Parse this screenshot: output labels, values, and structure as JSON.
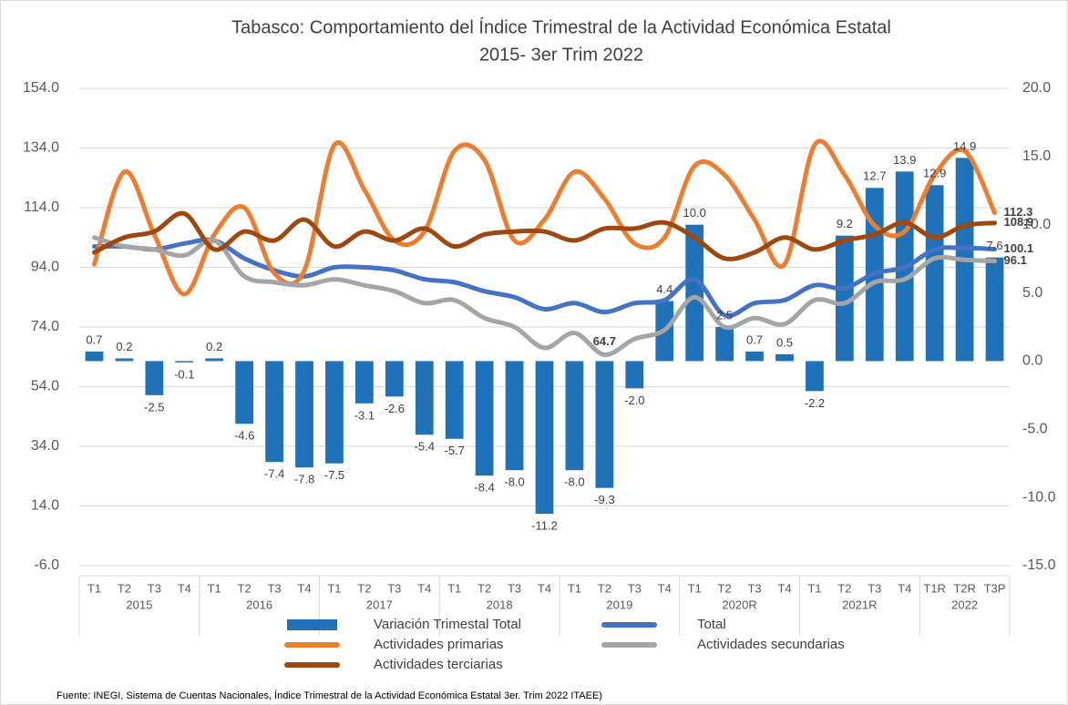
{
  "chart_data": {
    "type": "bar-line",
    "title": [
      "Tabasco: Comportamiento del Índice Trimestral de la Actividad Económica Estatal",
      "2015- 3er Trim 2022"
    ],
    "source": "Fuente: INEGI, Sistema de Cuentas Nacionales, Índice Trimestral de la Actividad Económica Estatal 3er. Trim 2022 ITAEE)",
    "groups": [
      {
        "name": "2015",
        "categories": [
          "T1",
          "T2",
          "T3",
          "T4"
        ]
      },
      {
        "name": "2016",
        "categories": [
          "T1",
          "T2",
          "T3",
          "T4"
        ]
      },
      {
        "name": "2017",
        "categories": [
          "T1",
          "T2",
          "T3",
          "T4"
        ]
      },
      {
        "name": "2018",
        "categories": [
          "T1",
          "T2",
          "T3",
          "T4"
        ]
      },
      {
        "name": "2019",
        "categories": [
          "T1",
          "T2",
          "T3",
          "T4"
        ]
      },
      {
        "name": "2020R",
        "categories": [
          "T1",
          "T2",
          "T3",
          "T4"
        ]
      },
      {
        "name": "2021R",
        "categories": [
          "T1",
          "T2",
          "T3",
          "T4"
        ]
      },
      {
        "name": "2022",
        "categories": [
          "T1R",
          "T2R",
          "T3P"
        ]
      }
    ],
    "ylim": [
      -6,
      154
    ],
    "yticks": [
      {
        "value": -6,
        "label": "-6.0"
      },
      {
        "value": 14,
        "label": "14.0"
      },
      {
        "value": 34,
        "label": "34.0"
      },
      {
        "value": 54,
        "label": "54.0"
      },
      {
        "value": 74,
        "label": "74.0"
      },
      {
        "value": 94,
        "label": "94.0"
      },
      {
        "value": 114,
        "label": "114.0"
      },
      {
        "value": 134,
        "label": "134.0"
      },
      {
        "value": 154,
        "label": "154.0"
      }
    ],
    "y2lim": [
      -15,
      20
    ],
    "y2ticks": [
      {
        "value": -15,
        "label": "-15.0"
      },
      {
        "value": -10,
        "label": "-10.0"
      },
      {
        "value": -5,
        "label": "-5.0"
      },
      {
        "value": 0,
        "label": "0.0"
      },
      {
        "value": 5,
        "label": "5.0"
      },
      {
        "value": 10,
        "label": "10.0"
      },
      {
        "value": 15,
        "label": "15.0"
      },
      {
        "value": 20,
        "label": "20.0"
      }
    ],
    "grid": true,
    "legend": "bottom",
    "series": [
      {
        "name": "Variación Trimestal Total",
        "type": "bar",
        "axis": "y2",
        "color": "#1f72b8",
        "values": [
          0.7,
          0.2,
          -2.5,
          -0.1,
          0.2,
          -4.6,
          -7.4,
          -7.8,
          -7.5,
          -3.1,
          -2.6,
          -5.4,
          -5.7,
          -8.4,
          -8.0,
          -11.2,
          -8.0,
          -9.3,
          -2.0,
          4.4,
          10.0,
          2.5,
          0.7,
          0.5,
          -2.2,
          9.2,
          12.7,
          13.9,
          12.9,
          14.9,
          7.6
        ],
        "value_labels": [
          "0.7",
          "0.2",
          "-2.5",
          "-0.1",
          "0.2",
          "-4.6",
          "-7.4",
          "-7.8",
          "-7.5",
          "-3.1",
          "-2.6",
          "-5.4",
          "-5.7",
          "-8.4",
          "-8.0",
          "-11.2",
          "-8.0",
          "-9.3",
          "-2.0",
          "4.4",
          "10.0",
          "2.5",
          "0.7",
          "0.5",
          "-2.2",
          "9.2",
          "12.7",
          "13.9",
          "12.9",
          "14.9",
          "7.6"
        ]
      },
      {
        "name": "Total",
        "type": "line",
        "color": "#4472c4",
        "values": [
          101,
          101,
          100,
          102,
          103,
          97,
          93,
          91,
          94,
          94,
          93,
          90,
          89,
          86,
          84,
          80,
          82,
          79,
          82,
          83,
          90,
          78,
          82,
          83,
          88,
          87,
          92,
          94,
          100,
          100.5,
          100.1
        ],
        "value_labels": [
          null,
          null,
          null,
          null,
          null,
          null,
          null,
          null,
          null,
          null,
          null,
          null,
          null,
          null,
          null,
          null,
          null,
          null,
          null,
          null,
          null,
          null,
          null,
          null,
          null,
          null,
          null,
          null,
          null,
          null,
          "100.1"
        ]
      },
      {
        "name": "Actividades primarias",
        "type": "line",
        "color": "#ed7d31",
        "values": [
          95,
          126,
          105,
          85,
          105,
          114,
          92,
          93,
          135,
          120,
          103,
          106,
          133,
          130,
          103,
          110,
          126,
          117,
          102,
          104,
          128,
          125,
          110,
          95,
          135,
          125,
          108,
          106,
          125,
          133,
          112.3
        ],
        "value_labels": [
          null,
          null,
          null,
          null,
          null,
          null,
          null,
          null,
          null,
          null,
          null,
          null,
          null,
          null,
          null,
          null,
          null,
          null,
          null,
          null,
          null,
          null,
          null,
          null,
          null,
          null,
          null,
          null,
          null,
          null,
          "112.3"
        ]
      },
      {
        "name": "Actividades secundarias",
        "type": "line",
        "color": "#a5a5a5",
        "values": [
          104,
          101,
          100,
          98,
          103,
          91,
          89,
          88,
          90,
          88,
          86,
          82,
          83,
          77,
          74,
          67,
          72,
          64.7,
          70,
          73,
          84,
          74,
          77,
          75,
          83,
          82,
          89,
          90,
          97,
          96.5,
          96.1
        ],
        "value_labels": [
          null,
          null,
          null,
          null,
          null,
          null,
          null,
          null,
          null,
          null,
          null,
          null,
          null,
          null,
          null,
          null,
          null,
          "64.7",
          null,
          null,
          null,
          null,
          null,
          null,
          null,
          null,
          null,
          null,
          null,
          null,
          "96.1"
        ]
      },
      {
        "name": "Actividades terciarias",
        "type": "line",
        "color": "#9e480e",
        "values": [
          99,
          104,
          106,
          112,
          100,
          106,
          103,
          110,
          101,
          106,
          103,
          107,
          101,
          105,
          106,
          106,
          103,
          107,
          107,
          109,
          104,
          97,
          99,
          104,
          100,
          103,
          105,
          109,
          104,
          108,
          108.9
        ],
        "value_labels": [
          null,
          null,
          null,
          null,
          null,
          null,
          null,
          null,
          null,
          null,
          null,
          null,
          null,
          null,
          null,
          null,
          null,
          null,
          null,
          null,
          null,
          null,
          null,
          null,
          null,
          null,
          null,
          null,
          null,
          null,
          "108.9"
        ]
      }
    ]
  }
}
